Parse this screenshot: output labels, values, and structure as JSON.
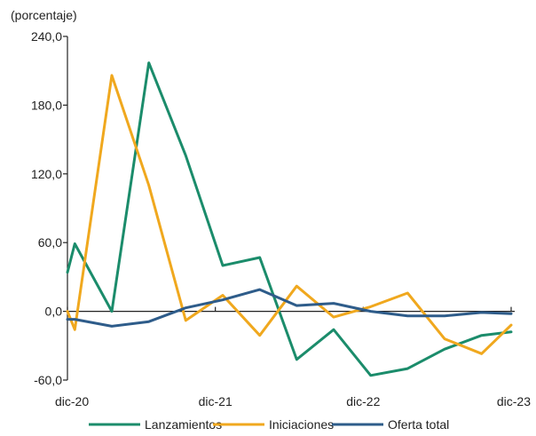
{
  "chart_data": {
    "type": "line",
    "title": "",
    "unit_label": "(porcentaje)",
    "xlabel": "",
    "ylabel": "",
    "ylim": [
      -60,
      240
    ],
    "yticks": [
      240,
      180,
      120,
      60,
      0,
      -60
    ],
    "ytick_labels": [
      "240,0",
      "180,0",
      "120,0",
      "60,0",
      "0,0",
      "-60,0"
    ],
    "x_tick_labels": [
      "dic-20",
      "dic-21",
      "dic-22",
      "dic-23"
    ],
    "x_tick_positions": [
      0,
      4,
      8,
      12
    ],
    "xlim": [
      0,
      12
    ],
    "grid": false,
    "legend_position": "bottom",
    "x": [
      0.0,
      0.2,
      1.2,
      2.2,
      3.2,
      4.2,
      5.2,
      6.2,
      7.2,
      8.2,
      9.2,
      10.2,
      11.2,
      12.0
    ],
    "series": [
      {
        "name": "Lanzamientos",
        "color": "#1b8c6b",
        "values": [
          34,
          59,
          0,
          217,
          136,
          40,
          47,
          -42,
          -16,
          -56,
          -50,
          -33,
          -21,
          -18
        ]
      },
      {
        "name": "Iniciaciones",
        "color": "#f0a81e",
        "values": [
          0,
          -16,
          206,
          110,
          -8,
          14,
          -21,
          22,
          -5,
          4,
          16,
          -24,
          -37,
          -12
        ]
      },
      {
        "name": "Oferta total",
        "color": "#2e5c8a",
        "values": [
          -7,
          -7,
          -13,
          -9,
          3,
          10,
          19,
          5,
          7,
          0,
          -4,
          -4,
          -1,
          -2
        ]
      }
    ]
  }
}
